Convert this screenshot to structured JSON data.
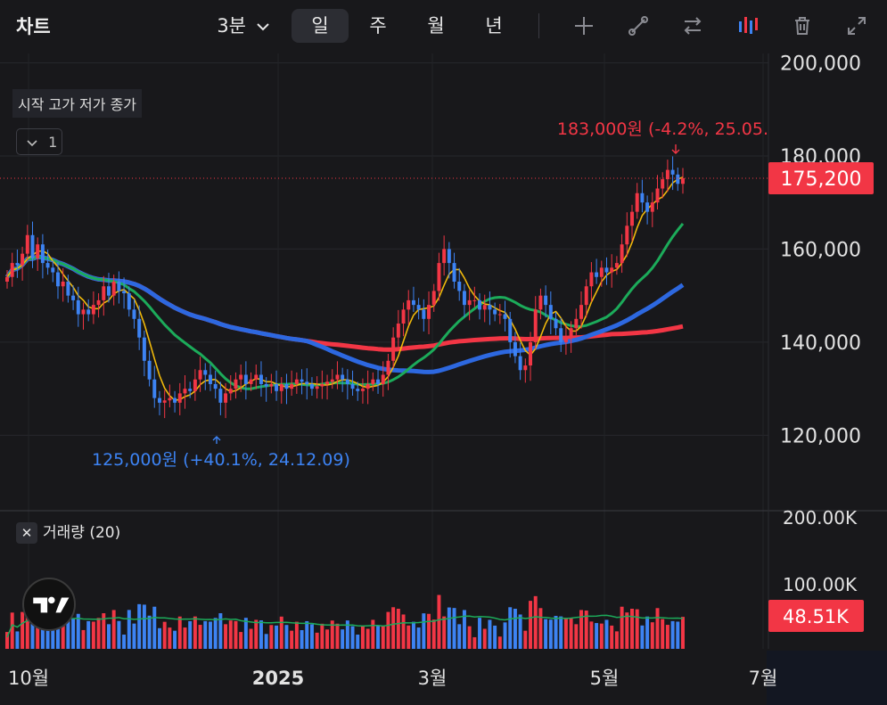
{
  "header": {
    "title": "차트",
    "interval": "3분",
    "timeframes": [
      "일",
      "주",
      "월",
      "년"
    ],
    "active_timeframe": "일",
    "tools": [
      "plus-icon",
      "trend-line-icon",
      "compare-icon",
      "candles-icon",
      "trash-icon",
      "fullscreen-icon"
    ]
  },
  "legend": {
    "ohlc_label": "시작 고가 저가 종가",
    "collapse_count": "1"
  },
  "volume_legend": {
    "label": "거래량 (20)"
  },
  "colors": {
    "up": "#f23645",
    "down": "#3d83f3",
    "ma5": "#f0b90b",
    "ma20": "#1cab5a",
    "ma60": "#2d68e0",
    "ma120": "#f23645"
  },
  "chart_data": [
    {
      "type": "candlestick",
      "title": "",
      "price_axis": {
        "ticks": [
          "200,000",
          "180,000",
          "160,000",
          "140,000",
          "120,000"
        ],
        "range": [
          104000,
          202000
        ]
      },
      "time_axis": {
        "labels": [
          "10월",
          "2025",
          "3월",
          "5월",
          "7월"
        ]
      },
      "current_price": "175,200",
      "high_annotation": {
        "text": "183,000원 (-4.2%, 25.05.",
        "value": 183000
      },
      "low_annotation": {
        "text": "125,000원 (+40.1%, 24.12.09)",
        "value": 125000
      },
      "closes": [
        154000,
        157000,
        156500,
        159000,
        163000,
        158000,
        161000,
        157000,
        156000,
        155000,
        152000,
        153000,
        150000,
        149000,
        146000,
        147000,
        146000,
        148000,
        149000,
        152000,
        150000,
        153000,
        151000,
        150500,
        147000,
        145000,
        141000,
        136000,
        132000,
        128000,
        127000,
        127500,
        128000,
        127000,
        129000,
        130000,
        129500,
        132000,
        134000,
        133000,
        131000,
        130000,
        127000,
        129000,
        130000,
        132000,
        133000,
        131000,
        132000,
        133000,
        131000,
        130500,
        131000,
        129500,
        131000,
        130000,
        131000,
        132000,
        131500,
        131000,
        130000,
        130500,
        131000,
        131500,
        132000,
        133000,
        132000,
        131000,
        130000,
        129500,
        130000,
        131000,
        132000,
        131000,
        133000,
        136000,
        141000,
        144000,
        147000,
        149000,
        148000,
        147000,
        145000,
        148000,
        151000,
        157000,
        160000,
        157000,
        153000,
        151000,
        148000,
        149000,
        149000,
        147000,
        148000,
        147000,
        146000,
        146000,
        145000,
        140000,
        137000,
        134000,
        135000,
        140000,
        147000,
        150000,
        148000,
        145000,
        143000,
        140000,
        141000,
        143000,
        145000,
        148000,
        152000,
        155000,
        154000,
        156000,
        155000,
        156000,
        157000,
        161000,
        165000,
        168000,
        172000,
        170000,
        168000,
        170000,
        173000,
        175000,
        177000,
        176000,
        174000,
        175200
      ],
      "volume_axis": {
        "ticks": [
          "200.00K",
          "100.00K"
        ],
        "range": [
          0,
          230000
        ]
      },
      "current_volume": "48.51K"
    }
  ]
}
